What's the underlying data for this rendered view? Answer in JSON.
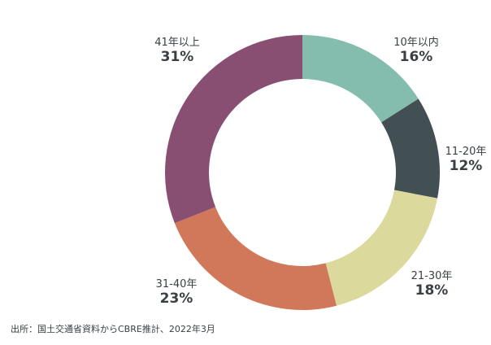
{
  "chart_data": {
    "type": "pie",
    "variant": "donut",
    "categories": [
      "10年以内",
      "11-20年",
      "21-30年",
      "31-40年",
      "41年以上"
    ],
    "values": [
      16,
      12,
      18,
      23,
      31
    ],
    "value_labels": [
      "16%",
      "12%",
      "18%",
      "23%",
      "31%"
    ],
    "colors": [
      "#84bcae",
      "#424f53",
      "#dbd99b",
      "#d2785a",
      "#894f72"
    ],
    "start": "12 o'clock, clockwise"
  },
  "source": "出所：国土交通省資料からCBRE推計、2022年3月"
}
